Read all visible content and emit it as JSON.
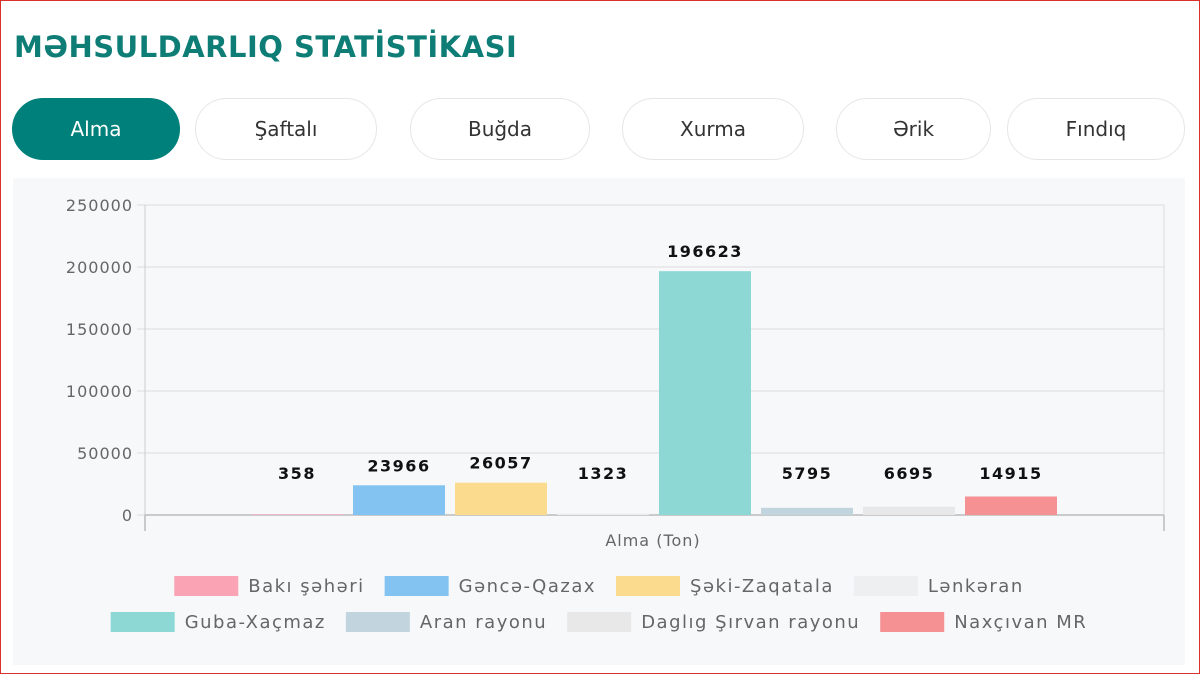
{
  "page": {
    "title": "MƏHSULDARLIQ STATİSTİKASI"
  },
  "tabs": [
    {
      "label": "Alma",
      "active": true
    },
    {
      "label": "Şaftalı",
      "active": false
    },
    {
      "label": "Buğda",
      "active": false
    },
    {
      "label": "Xurma",
      "active": false
    },
    {
      "label": "Ərik",
      "active": false
    },
    {
      "label": "Fındıq",
      "active": false
    }
  ],
  "colors": {
    "accent": "#00807a",
    "title": "#0e7d76"
  },
  "chart_data": {
    "type": "bar",
    "xlabel": "Alma (Ton)",
    "ylim": [
      0,
      250000
    ],
    "yticks": [
      0,
      50000,
      100000,
      150000,
      200000,
      250000
    ],
    "grid": true,
    "legend_position": "bottom",
    "series": [
      {
        "name": "Bakı şəhəri",
        "value": 358,
        "color": "#f9a3b5"
      },
      {
        "name": "Gəncə-Qazax",
        "value": 23966,
        "color": "#82c3f2"
      },
      {
        "name": "Şəki-Zaqatala",
        "value": 26057,
        "color": "#fbdc8f"
      },
      {
        "name": "Lənkəran",
        "value": 1323,
        "color": "#eeeff1"
      },
      {
        "name": "Guba-Xaçmaz",
        "value": 196623,
        "color": "#8dd7d4"
      },
      {
        "name": "Aran rayonu",
        "value": 5795,
        "color": "#c2d5df"
      },
      {
        "name": "Daglıg Şırvan rayonu",
        "value": 6695,
        "color": "#e8e8e8"
      },
      {
        "name": "Naxçıvan MR",
        "value": 14915,
        "color": "#f59093"
      }
    ]
  }
}
